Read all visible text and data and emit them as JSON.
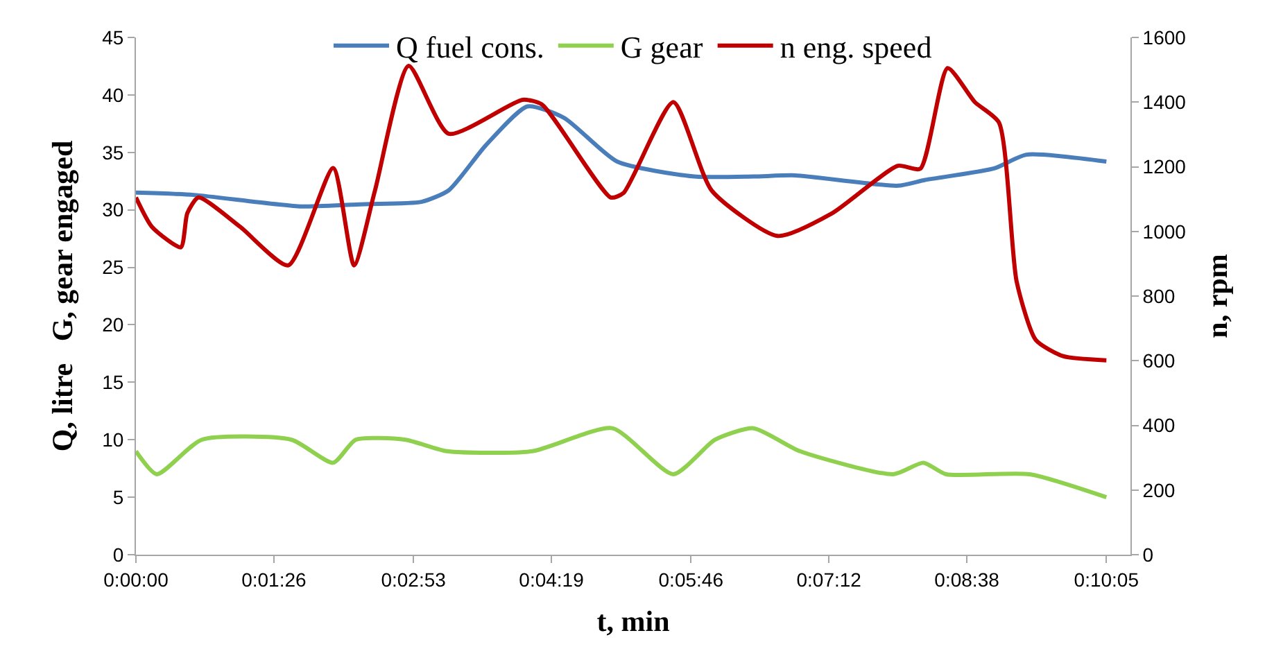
{
  "chart_data": {
    "type": "line",
    "xlabel": "t, min",
    "ylabel": "Q, litre   G, gear engaged",
    "y2label": "n, rpm",
    "xlim": [
      0,
      620
    ],
    "xticks": [
      {
        "value": 0,
        "label": "0:00:00"
      },
      {
        "value": 86,
        "label": "0:01:26"
      },
      {
        "value": 173,
        "label": "0:02:53"
      },
      {
        "value": 259,
        "label": "0:04:19"
      },
      {
        "value": 346,
        "label": "0:05:46"
      },
      {
        "value": 432,
        "label": "0:07:12"
      },
      {
        "value": 518,
        "label": "0:08:38"
      },
      {
        "value": 605,
        "label": "0:10:05"
      }
    ],
    "ylim": [
      0,
      45
    ],
    "yticks": [
      0,
      5,
      10,
      15,
      20,
      25,
      30,
      35,
      40,
      45
    ],
    "y2lim": [
      0,
      1600
    ],
    "y2ticks": [
      0,
      200,
      400,
      600,
      800,
      1000,
      1200,
      1400,
      1600
    ],
    "legend": "top",
    "series": [
      {
        "name": "Q fuel cons.",
        "color": "#4a7ebb",
        "x": [
          0,
          36,
          103,
          143,
          178,
          195,
          218,
          244,
          267,
          300,
          348,
          385,
          411,
          475,
          492,
          535,
          555,
          605
        ],
        "values": [
          31.5,
          31.3,
          30.3,
          30.5,
          30.7,
          31.7,
          35.6,
          39.0,
          38.0,
          34.2,
          32.9,
          32.9,
          33.0,
          32.1,
          32.6,
          33.6,
          34.8,
          34.2
        ]
      },
      {
        "name": "G gear",
        "color": "#8fd14f",
        "x": [
          0,
          13,
          41,
          97,
          123,
          137,
          168,
          194,
          247,
          297,
          335,
          361,
          385,
          414,
          472,
          491,
          505,
          557,
          605
        ],
        "values": [
          9,
          7,
          10,
          10,
          8,
          10,
          10,
          9,
          9,
          11,
          7,
          10,
          11,
          9,
          7,
          8,
          7,
          7,
          5
        ]
      },
      {
        "name": "n eng. speed",
        "color": "#c00000",
        "axis": "y2",
        "x": [
          0,
          10,
          28,
          32,
          39,
          65,
          95,
          123,
          136,
          149,
          170,
          195,
          241,
          253,
          296,
          304,
          335,
          359,
          400,
          434,
          475,
          489,
          506,
          523,
          538,
          549,
          561,
          578,
          605
        ],
        "values": [
          1105,
          1014,
          951,
          1056,
          1105,
          1014,
          895,
          1196,
          895,
          1126,
          1512,
          1302,
          1407,
          1393,
          1105,
          1119,
          1400,
          1126,
          986,
          1056,
          1203,
          1194,
          1505,
          1400,
          1337,
          846,
          664,
          614,
          601
        ]
      }
    ]
  }
}
